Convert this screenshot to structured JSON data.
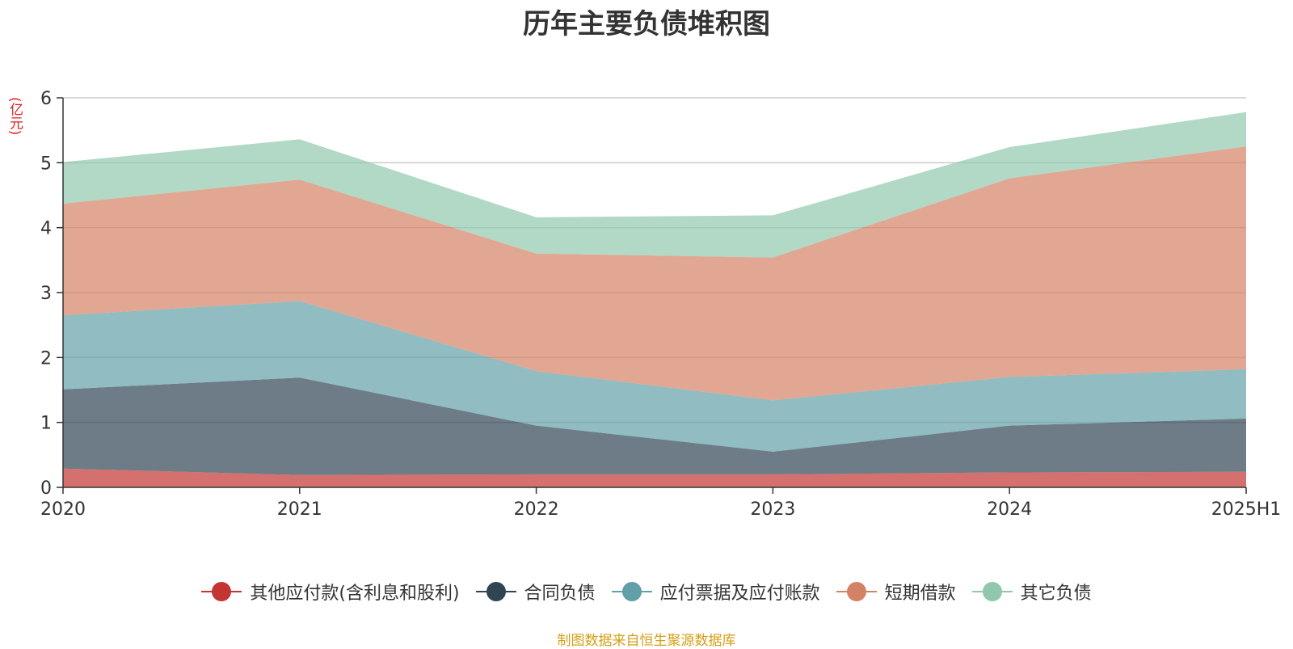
{
  "chart_data": {
    "type": "area",
    "stacked": true,
    "title": "历年主要负债堆积图",
    "y_unit": "(亿元)",
    "categories": [
      "2020",
      "2021",
      "2022",
      "2023",
      "2024",
      "2025H1"
    ],
    "ylim": [
      0,
      6
    ],
    "yticks": [
      0,
      1,
      2,
      3,
      4,
      5,
      6
    ],
    "grid": true,
    "legend_position": "bottom",
    "series": [
      {
        "name": "其他应付款(含利息和股利)",
        "color": "#c23531",
        "values": [
          0.29,
          0.19,
          0.2,
          0.2,
          0.23,
          0.24
        ]
      },
      {
        "name": "合同负债",
        "color": "#2f4554",
        "values": [
          1.22,
          1.5,
          0.75,
          0.35,
          0.72,
          0.82
        ]
      },
      {
        "name": "应付票据及应付账款",
        "color": "#61a0a8",
        "values": [
          1.14,
          1.18,
          0.84,
          0.79,
          0.75,
          0.76
        ]
      },
      {
        "name": "短期借款",
        "color": "#d48265",
        "values": [
          1.72,
          1.87,
          1.81,
          2.2,
          3.06,
          3.43
        ]
      },
      {
        "name": "其它负债",
        "color": "#91c7ae",
        "values": [
          0.64,
          0.62,
          0.56,
          0.65,
          0.48,
          0.53
        ]
      }
    ]
  },
  "footer": {
    "source": "制图数据来自恒生聚源数据库"
  }
}
